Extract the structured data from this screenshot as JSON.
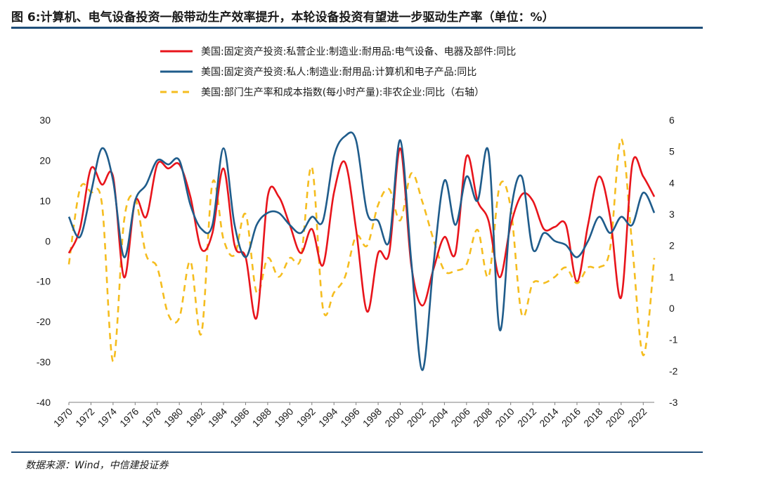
{
  "figure": {
    "title": "图 6:计算机、电气设备投资一般带动生产效率提升，本轮设备投资有望进一步驱动生产率（单位：%）",
    "source": "数据来源：Wind，中信建投证券"
  },
  "chart_data": {
    "type": "line",
    "title": "",
    "x_ticks": [
      "1970",
      "1972",
      "1974",
      "1976",
      "1978",
      "1980",
      "1982",
      "1984",
      "1986",
      "1988",
      "1990",
      "1992",
      "1994",
      "1996",
      "1998",
      "2000",
      "2002",
      "2004",
      "2006",
      "2008",
      "2010",
      "2012",
      "2014",
      "2016",
      "2018",
      "2020",
      "2022"
    ],
    "y_left": {
      "min": -40,
      "max": 30,
      "ticks": [
        30,
        20,
        10,
        0,
        -10,
        -20,
        -30,
        -40
      ]
    },
    "y_right": {
      "min": -3,
      "max": 6,
      "ticks": [
        6,
        5,
        4,
        3,
        2,
        1,
        0,
        -1,
        -2,
        -3
      ]
    },
    "legend_position": "top-center",
    "grid": false,
    "series": [
      {
        "name": "美国:固定资产投资:私营企业:制造业:耐用品:电气设备、电器及部件:同比",
        "axis": "left",
        "color": "#e8141b",
        "style": "solid",
        "x": [
          1970,
          1971,
          1972,
          1973,
          1974,
          1975,
          1976,
          1977,
          1978,
          1979,
          1980,
          1981,
          1982,
          1983,
          1984,
          1985,
          1986,
          1987,
          1988,
          1989,
          1990,
          1991,
          1992,
          1993,
          1994,
          1995,
          1996,
          1997,
          1998,
          1999,
          2000,
          2001,
          2002,
          2003,
          2004,
          2005,
          2006,
          2007,
          2008,
          2009,
          2010,
          2011,
          2012,
          2013,
          2014,
          2015,
          2016,
          2017,
          2018,
          2019,
          2020,
          2021,
          2022,
          2023
        ],
        "y": [
          -3,
          3,
          18,
          14,
          16,
          -9,
          10,
          6,
          19,
          18,
          19,
          11,
          -2,
          2,
          18,
          -1,
          -4,
          -19,
          11,
          11,
          4,
          -3,
          3,
          -6,
          12,
          19.5,
          3,
          -17.5,
          -3,
          -3,
          23,
          -6,
          -16,
          -7,
          1,
          -3,
          21,
          10,
          5,
          -9,
          4,
          11.5,
          10,
          3,
          3.5,
          4,
          -10,
          4,
          16,
          6,
          -14,
          19,
          16,
          11
        ]
      },
      {
        "name": "美国:固定资产投资:私人:制造业:耐用品:计算机和电子产品:同比",
        "axis": "left",
        "color": "#1f5c8b",
        "style": "solid",
        "x": [
          1970,
          1971,
          1972,
          1973,
          1974,
          1975,
          1976,
          1977,
          1978,
          1979,
          1980,
          1981,
          1982,
          1983,
          1984,
          1985,
          1986,
          1987,
          1988,
          1989,
          1990,
          1991,
          1992,
          1993,
          1994,
          1995,
          1996,
          1997,
          1998,
          1999,
          2000,
          2001,
          2002,
          2003,
          2004,
          2005,
          2006,
          2007,
          2008,
          2009,
          2010,
          2011,
          2012,
          2013,
          2014,
          2015,
          2016,
          2017,
          2018,
          2019,
          2020,
          2021,
          2022,
          2023
        ],
        "y": [
          6,
          1,
          12,
          23,
          15,
          -4,
          10,
          14,
          20,
          19,
          20,
          9,
          3,
          4,
          23,
          4,
          -4,
          4,
          7,
          7,
          4,
          2,
          6,
          5,
          21,
          26,
          25,
          7,
          5,
          0,
          25,
          -5,
          -32,
          -6,
          15,
          4,
          16,
          10,
          22,
          -22,
          7,
          16,
          -2,
          2,
          0,
          -1,
          -4,
          0,
          6,
          2,
          6,
          4,
          12,
          7
        ]
      },
      {
        "name": "美国:部门生产率和成本指数(每小时产量):非农企业:同比（右轴）",
        "axis": "right",
        "color": "#f5bd1f",
        "style": "dashed",
        "x": [
          1970,
          1971,
          1972,
          1973,
          1974,
          1975,
          1976,
          1977,
          1978,
          1979,
          1980,
          1981,
          1982,
          1983,
          1984,
          1985,
          1986,
          1987,
          1988,
          1989,
          1990,
          1991,
          1992,
          1993,
          1994,
          1995,
          1996,
          1997,
          1998,
          1999,
          2000,
          2001,
          2002,
          2003,
          2004,
          2005,
          2006,
          2007,
          2008,
          2009,
          2010,
          2011,
          2012,
          2013,
          2014,
          2015,
          2016,
          2017,
          2018,
          2019,
          2020,
          2021,
          2022,
          2023
        ],
        "y": [
          1.4,
          3.8,
          3.7,
          3.3,
          -1.7,
          2.8,
          3.5,
          1.7,
          1.3,
          -0.2,
          -0.3,
          1.5,
          -0.8,
          4,
          2.2,
          1.7,
          3,
          0.5,
          1.6,
          1,
          1.6,
          1.6,
          4.5,
          0,
          0.5,
          1,
          2.3,
          2,
          3.3,
          3.8,
          2.8,
          4.3,
          3.4,
          2.2,
          1.2,
          1.2,
          1.4,
          2.5,
          1,
          3.9,
          3.2,
          -0.2,
          0.8,
          0.8,
          1,
          1.3,
          0.8,
          1.3,
          1.3,
          1.9,
          5.4,
          2,
          -1.5,
          1.6
        ]
      }
    ]
  }
}
